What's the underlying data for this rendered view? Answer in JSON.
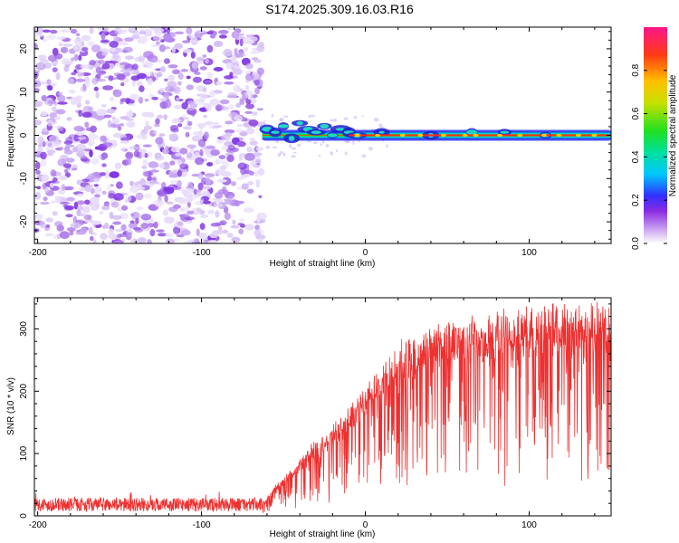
{
  "title": "S174.2025.309.16.03.R16",
  "chart_data": [
    {
      "type": "heatmap",
      "xlabel": "Height of straight line (km)",
      "ylabel": "Frequency (Hz)",
      "xlim": [
        -202,
        150
      ],
      "ylim": [
        -25,
        25
      ],
      "xticks": [
        -200,
        -100,
        0,
        100
      ],
      "xtick_labels": [
        "-200",
        "-100",
        "0",
        "100"
      ],
      "yticks": [
        -20,
        -10,
        0,
        10,
        20
      ],
      "ytick_labels": [
        "-20",
        "-10",
        "0",
        "10",
        "20"
      ],
      "noise_region_km": [
        -202,
        -63
      ],
      "signal_start_km": -63,
      "signal_frequency_hz": 0,
      "colorbar": {
        "label": "Normalized spectral amplitude",
        "range": [
          0,
          1
        ],
        "ticks": [
          0.0,
          0.2,
          0.4,
          0.6,
          0.8
        ],
        "tick_labels": [
          "0.0",
          "0.2",
          "0.4",
          "0.6",
          "0.8"
        ]
      }
    },
    {
      "type": "line",
      "xlabel": "Height of straight line (km)",
      "ylabel": "SNR (10 * v/v)",
      "xlim": [
        -202,
        150
      ],
      "ylim": [
        0,
        350
      ],
      "xticks": [
        -200,
        -100,
        0,
        100
      ],
      "xtick_labels": [
        "-200",
        "-100",
        "0",
        "100"
      ],
      "yticks": [
        0,
        100,
        200,
        300
      ],
      "ytick_labels": [
        "0",
        "100",
        "200",
        "300"
      ],
      "series": [
        {
          "name": "SNR",
          "color": "#ee3030",
          "x": [
            -202,
            -150,
            -100,
            -64,
            -62,
            -58,
            -55,
            -50,
            -45,
            -40,
            -35,
            -30,
            -25,
            -20,
            -15,
            -10,
            -5,
            0,
            5,
            10,
            15,
            20,
            25,
            30,
            40,
            50,
            60,
            70,
            80,
            90,
            100,
            110,
            120,
            130,
            140,
            150
          ],
          "y": [
            18,
            18,
            18,
            18,
            22,
            35,
            45,
            55,
            70,
            85,
            100,
            110,
            120,
            135,
            145,
            160,
            175,
            190,
            205,
            220,
            235,
            250,
            262,
            270,
            278,
            285,
            292,
            298,
            302,
            306,
            308,
            310,
            312,
            314,
            316,
            318
          ]
        }
      ]
    }
  ]
}
